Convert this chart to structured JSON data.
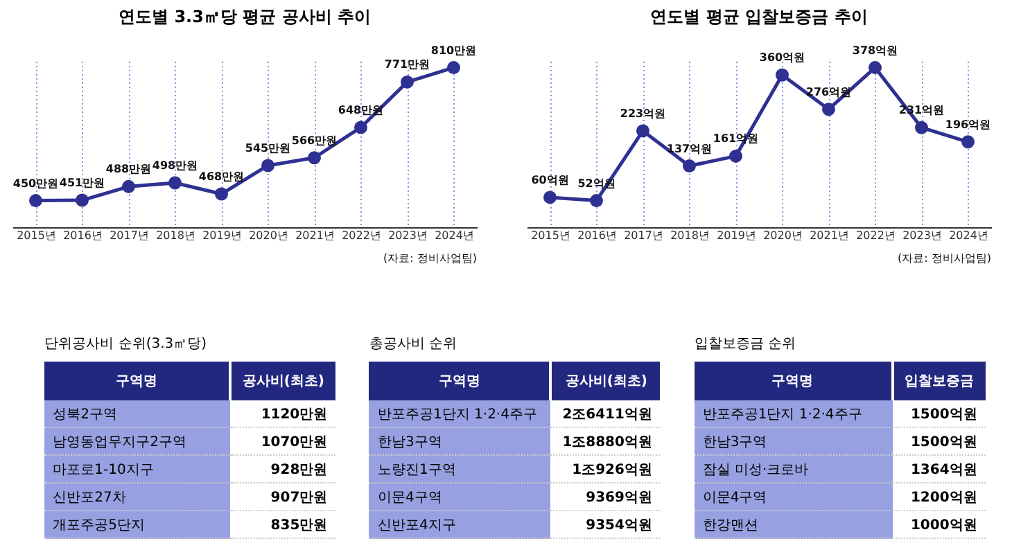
{
  "chart_data": [
    {
      "type": "line",
      "title": "연도별 3.3㎡당 평균 공사비 추이",
      "categories": [
        "2015년",
        "2016년",
        "2017년",
        "2018년",
        "2019년",
        "2020년",
        "2021년",
        "2022년",
        "2023년",
        "2024년"
      ],
      "values": [
        450,
        451,
        488,
        498,
        468,
        545,
        566,
        648,
        771,
        810
      ],
      "value_labels": [
        "450만원",
        "451만원",
        "488만원",
        "498만원",
        "468만원",
        "545만원",
        "566만원",
        "648만원",
        "771만원",
        "810만원"
      ],
      "color": "#2e3192",
      "marker": "circle",
      "grid": "x",
      "annotations": [
        "(자료: 정비사업팀)"
      ]
    },
    {
      "type": "line",
      "title": "연도별 평균 입찰보증금 추이",
      "categories": [
        "2015년",
        "2016년",
        "2017년",
        "2018년",
        "2019년",
        "2020년",
        "2021년",
        "2022년",
        "2023년",
        "2024년"
      ],
      "values": [
        60,
        52,
        223,
        137,
        161,
        360,
        276,
        378,
        231,
        196
      ],
      "value_labels": [
        "60억원",
        "52억원",
        "223억원",
        "137억원",
        "161억원",
        "360억원",
        "276억원",
        "378억원",
        "231억원",
        "196억원"
      ],
      "color": "#2e3192",
      "marker": "circle",
      "grid": "x",
      "annotations": [
        "(자료: 정비사업팀)"
      ]
    },
    {
      "type": "other",
      "title": "단위공사비 순위(3.3㎡당)",
      "annotations": [
        "구역명",
        "공사비(최초)",
        "성북2구역",
        "1120만원",
        "남영동업무지구2구역",
        "1070만원",
        "마포로1-10지구",
        "928만원",
        "신반포27차",
        "907만원",
        "개포주공5단지",
        "835만원"
      ]
    },
    {
      "type": "other",
      "title": "총공사비 순위",
      "annotations": [
        "구역명",
        "공사비(최초)",
        "반포주공1단지 1·2·4주구",
        "2조6411억원",
        "한남3구역",
        "1조8880억원",
        "노량진1구역",
        "1조926억원",
        "이문4구역",
        "9369억원",
        "신반포4지구",
        "9354억원"
      ]
    },
    {
      "type": "other",
      "title": "입찰보증금 순위",
      "annotations": [
        "구역명",
        "입찰보증금",
        "반포주공1단지 1·2·4주구",
        "1500억원",
        "한남3구역",
        "1500억원",
        "잠실 미성·크로바",
        "1364억원",
        "이문4구역",
        "1200억원",
        "한강맨션",
        "1000억원"
      ]
    }
  ]
}
